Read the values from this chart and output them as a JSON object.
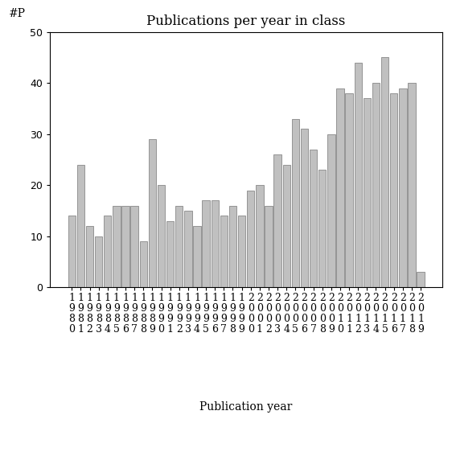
{
  "years": [
    1980,
    1981,
    1982,
    1983,
    1984,
    1985,
    1986,
    1987,
    1988,
    1989,
    1990,
    1991,
    1992,
    1993,
    1994,
    1995,
    1996,
    1997,
    1998,
    1999,
    2000,
    2001,
    2002,
    2003,
    2004,
    2005,
    2006,
    2007,
    2008,
    2009,
    2010,
    2011,
    2012,
    2013,
    2014,
    2015,
    2016,
    2017,
    2018,
    2019
  ],
  "values": [
    14,
    24,
    12,
    10,
    14,
    16,
    16,
    16,
    9,
    29,
    20,
    13,
    16,
    15,
    12,
    17,
    17,
    14,
    16,
    14,
    19,
    20,
    16,
    26,
    24,
    33,
    31,
    27,
    23,
    30,
    39,
    38,
    44,
    37,
    40,
    45,
    38,
    39,
    40,
    3
  ],
  "bar_color": "#c0c0c0",
  "bar_edgecolor": "#888888",
  "title": "Publications per year in class",
  "xlabel": "Publication year",
  "ylabel": "#P",
  "ylim": [
    0,
    50
  ],
  "yticks": [
    0,
    10,
    20,
    30,
    40,
    50
  ],
  "title_fontsize": 12,
  "label_fontsize": 10,
  "tick_fontsize": 9,
  "background_color": "#ffffff"
}
